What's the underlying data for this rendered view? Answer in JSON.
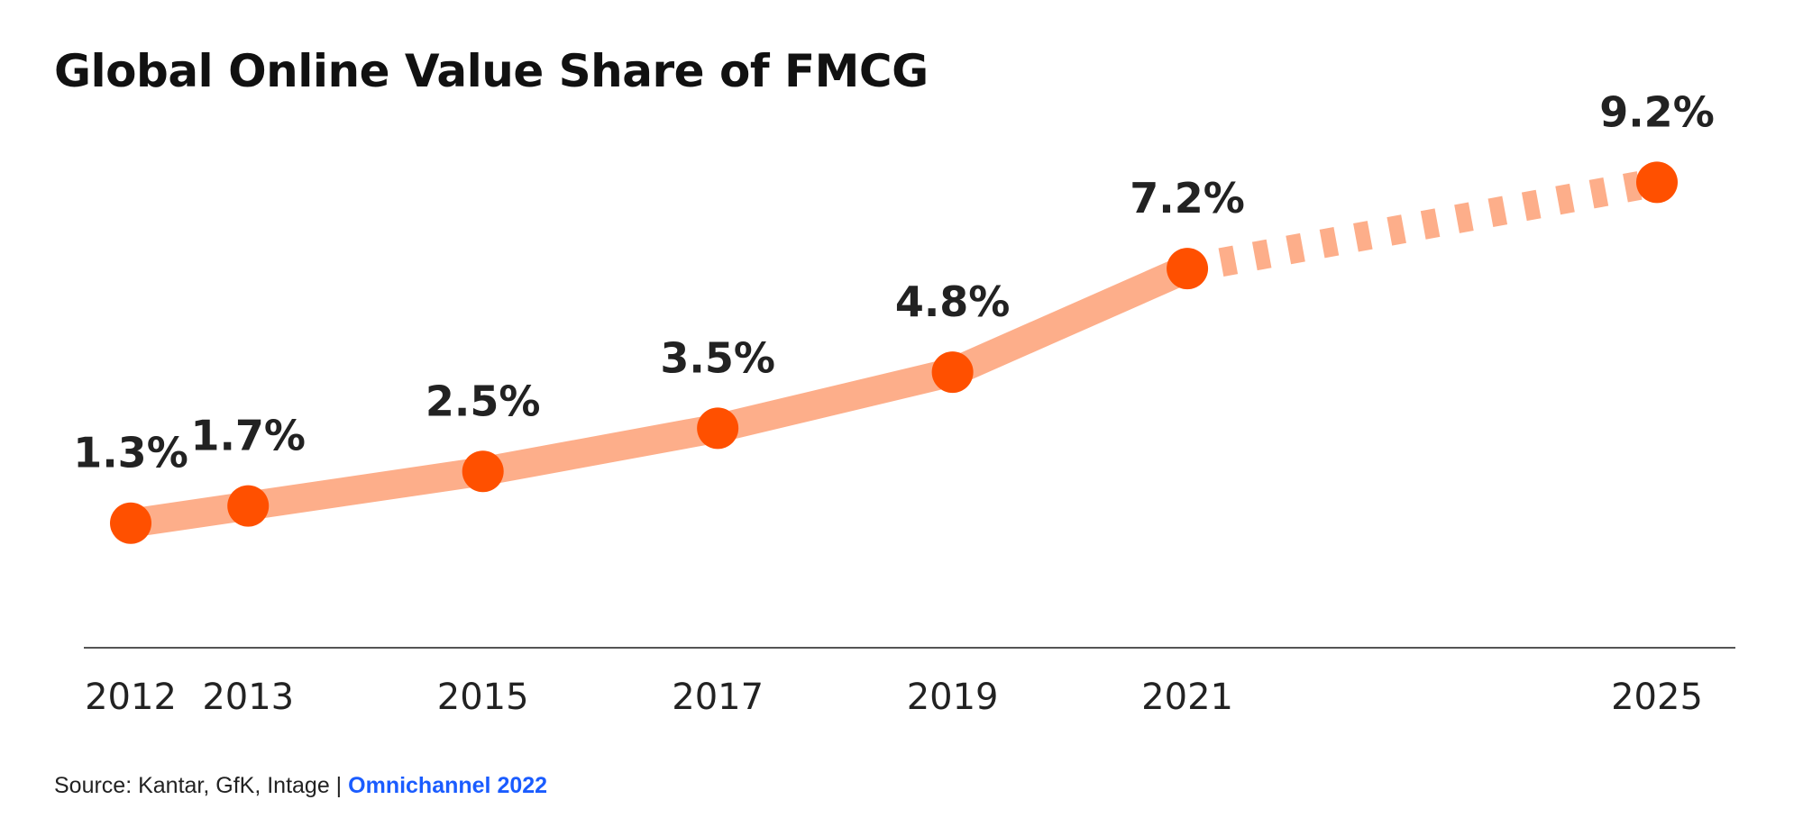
{
  "chart_data": {
    "type": "line",
    "title": "Global Online Value Share of FMCG",
    "x": [
      "2012",
      "2013",
      "2015",
      "2017",
      "2019",
      "2021",
      "2025"
    ],
    "values": [
      1.3,
      1.7,
      2.5,
      3.5,
      4.8,
      7.2,
      9.2
    ],
    "data_labels": [
      "1.3%",
      "1.7%",
      "2.5%",
      "3.5%",
      "4.8%",
      "7.2%",
      "9.2%"
    ],
    "projected_from": "2021",
    "xlabel": "",
    "ylabel": "",
    "grid": false,
    "colors": {
      "line": "#fdae8a",
      "point": "#ff5000",
      "text": "#222222",
      "axis": "#555555"
    }
  },
  "footer": {
    "source_text": "Source: Kantar, GfK, Intage |",
    "link_text": "Omnichannel 2022",
    "link_color": "#1a5cff"
  }
}
